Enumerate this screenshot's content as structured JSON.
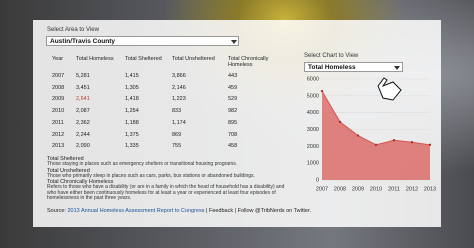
{
  "area_selector": {
    "label": "Select Area to View",
    "selected": "Austin/Travis County"
  },
  "table": {
    "columns": [
      "Year",
      "Total Homeless",
      "Total Sheltered",
      "Total Unsheltered",
      "Total Chronically Homeless"
    ],
    "rows": [
      [
        "2007",
        "5,281",
        "1,415",
        "3,866",
        "443"
      ],
      [
        "2008",
        "3,451",
        "1,305",
        "2,146",
        "459"
      ],
      [
        "2009",
        "2,641",
        "1,418",
        "1,223",
        "529"
      ],
      [
        "2010",
        "2,087",
        "1,254",
        "833",
        "982"
      ],
      [
        "2011",
        "2,362",
        "1,188",
        "1,174",
        "895"
      ],
      [
        "2012",
        "2,244",
        "1,375",
        "869",
        "708"
      ],
      [
        "2013",
        "2,090",
        "1,335",
        "755",
        "458"
      ]
    ]
  },
  "notes": [
    {
      "title": "Total Sheltered",
      "text": "Those staying in places such as emergency shelters or transitional housing programs."
    },
    {
      "title": "Total Unsheltered",
      "text": "Those who primarily sleep in places such as cars, parks, bus stations or abandoned buildings."
    },
    {
      "title": "Total Chronically Homeless",
      "text": "Refers to those who have a disability (or are in a family in which the head of household has a disability) and who have either been continuously homeless for at least a year or experienced at least four episodes of homelessness in the past three years."
    }
  ],
  "footer": [
    "Source:",
    "2013 Annual Homeless Assessment Report to Congress",
    "| Feedback |",
    "Follow @TribNerds on Twitter."
  ],
  "chart_data": {
    "type": "area",
    "selector_label": "Select Chart to View",
    "selected": "Total Homeless",
    "x": [
      2007,
      2008,
      2009,
      2010,
      2011,
      2012,
      2013
    ],
    "values": [
      5281,
      3451,
      2641,
      2087,
      2362,
      2244,
      2090
    ],
    "color": "#d9534f",
    "xlim": [
      2007,
      2013
    ],
    "ylim": [
      0,
      6000
    ],
    "yticks": [
      0,
      1000,
      2000,
      3000,
      4000,
      5000,
      6000
    ],
    "grid": true
  }
}
